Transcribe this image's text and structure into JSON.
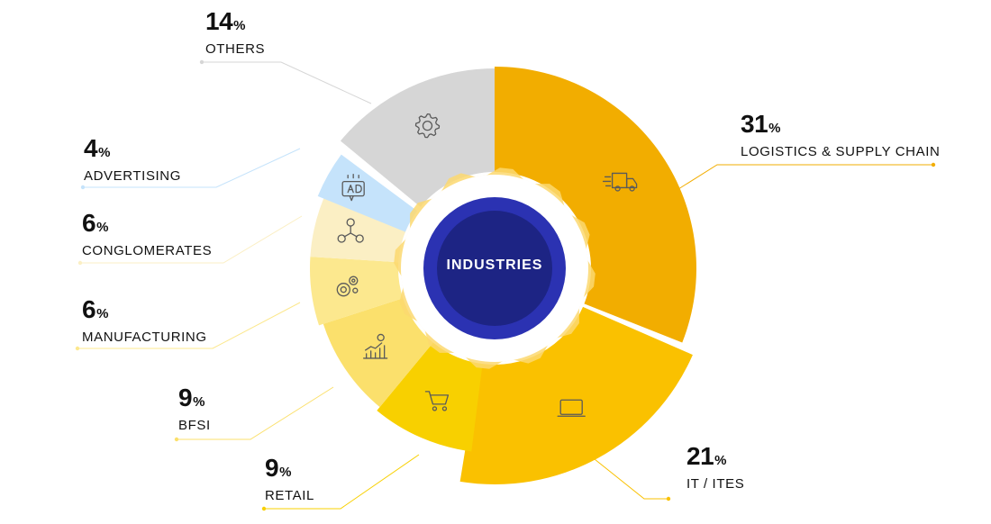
{
  "chart_data": {
    "type": "pie",
    "title": "INDUSTRIES",
    "unit": "%",
    "slices": [
      {
        "label": "LOGISTICS & SUPPLY CHAIN",
        "value": 31,
        "color": "#f2ad00",
        "icon": "truck-icon"
      },
      {
        "label": "IT / ITES",
        "value": 21,
        "color": "#fac100",
        "icon": "laptop-icon"
      },
      {
        "label": "RETAIL",
        "value": 9,
        "color": "#f8d000",
        "icon": "cart-icon"
      },
      {
        "label": "BFSI",
        "value": 9,
        "color": "#fbe06c",
        "icon": "growth-chart-icon"
      },
      {
        "label": "MANUFACTURING",
        "value": 6,
        "color": "#fce88e",
        "icon": "gears-icon"
      },
      {
        "label": "CONGLOMERATES",
        "value": 6,
        "color": "#fbefc4",
        "icon": "network-icon"
      },
      {
        "label": "ADVERTISING",
        "value": 4,
        "color": "#c5e3fb",
        "icon": "ad-board-icon"
      },
      {
        "label": "OTHERS",
        "value": 14,
        "color": "#d6d6d6",
        "icon": "gear-icon"
      }
    ]
  },
  "colors": {
    "center_dark": "#1d2484",
    "center_ring": "#2b32b2",
    "gear_ring": "#fbd870"
  }
}
